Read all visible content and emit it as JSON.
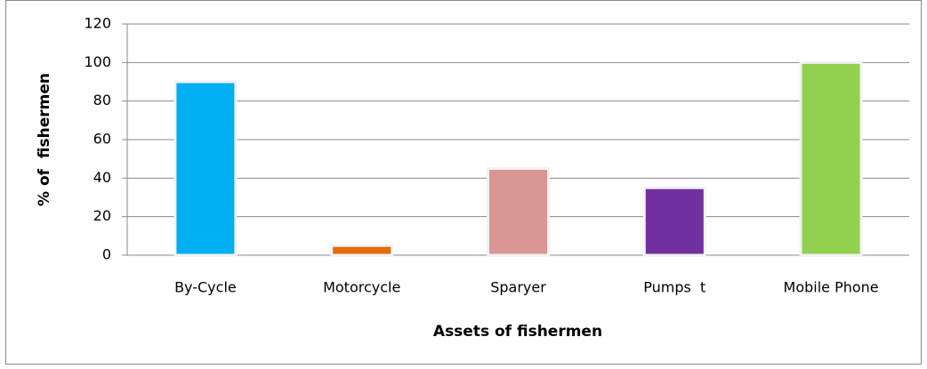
{
  "chart_data": {
    "type": "bar",
    "categories": [
      "By-Cycle",
      "Motorcycle",
      "Sparyer",
      "Pumps  t",
      "Mobile Phone"
    ],
    "values": [
      90,
      5,
      45,
      35,
      100
    ],
    "colors": [
      "#00b0f0",
      "#e36c0a",
      "#d99694",
      "#7030a0",
      "#92d050"
    ],
    "ylim": [
      0,
      120
    ],
    "yticks": [
      0,
      20,
      40,
      60,
      80,
      100,
      120
    ],
    "grid": true,
    "y_label": "% of  fishermen",
    "x_label": "Assets of fishermen"
  }
}
